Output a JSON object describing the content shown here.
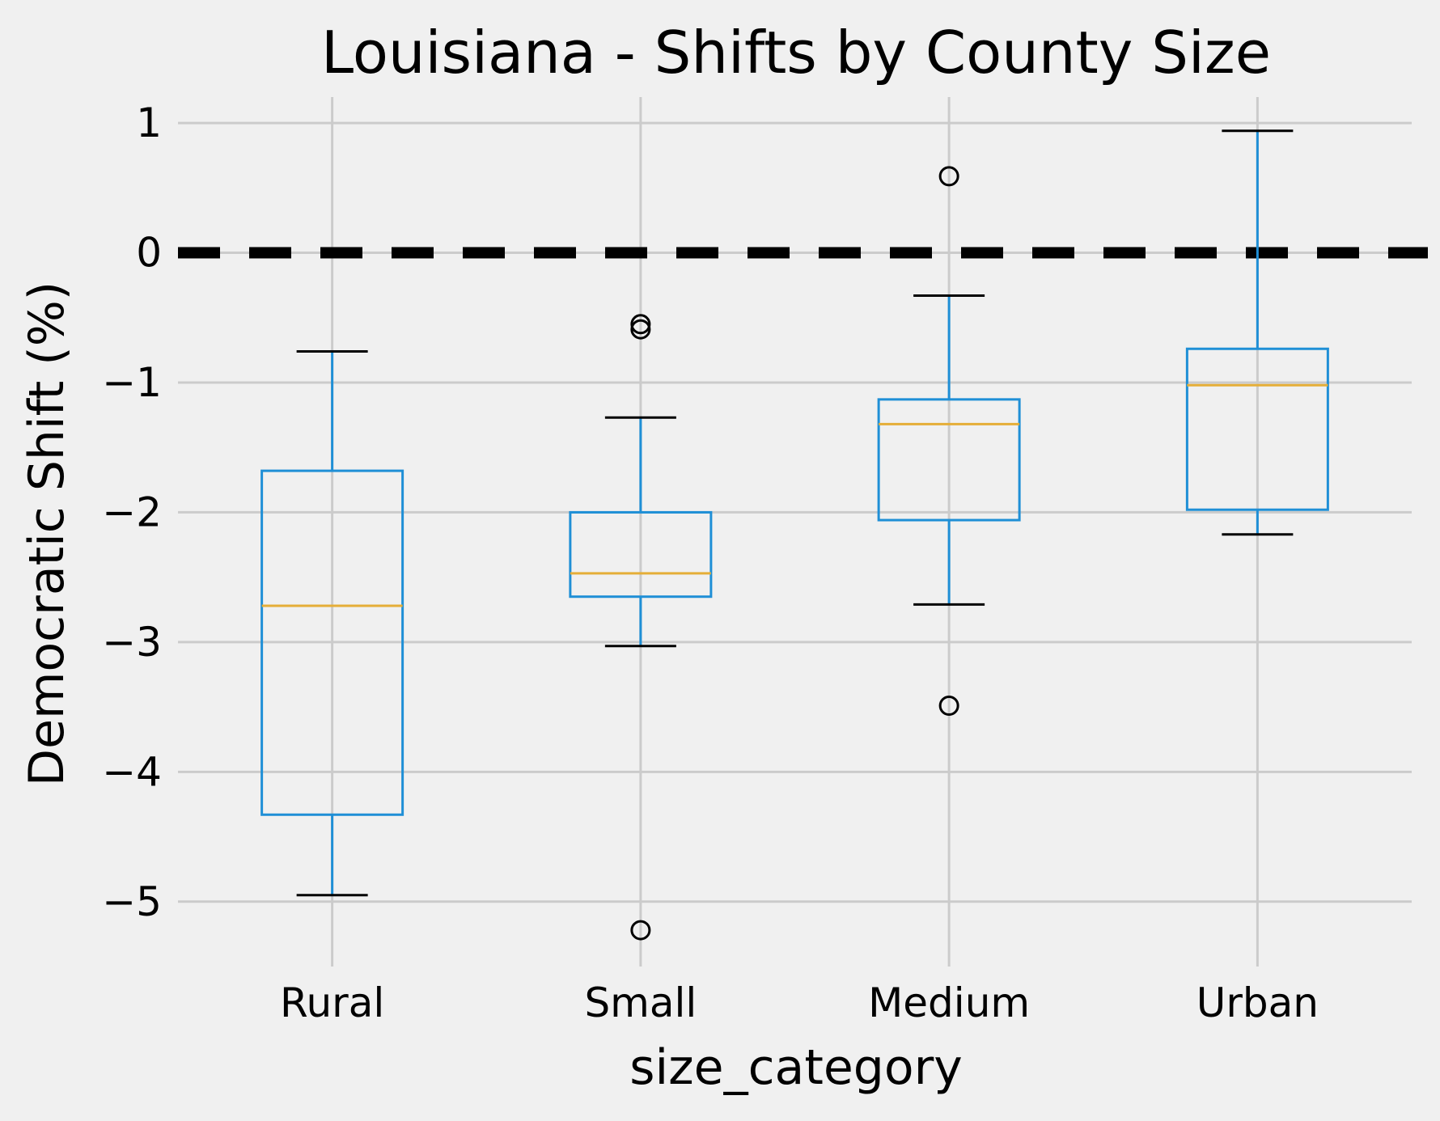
{
  "chart_data": {
    "type": "box",
    "title": "Louisiana - Shifts by County Size",
    "xlabel": "size_category",
    "ylabel": "Democratic Shift (%)",
    "ylim": [
      -5.5,
      1.2
    ],
    "yticks": [
      1,
      0,
      -1,
      -2,
      -3,
      -4,
      -5
    ],
    "ytick_labels": [
      "1",
      "0",
      "−1",
      "−2",
      "−3",
      "−4",
      "−5"
    ],
    "grid": true,
    "reference_line": {
      "y": 0,
      "style": "dashed",
      "color": "#000000"
    },
    "categories": [
      "Rural",
      "Small",
      "Medium",
      "Urban"
    ],
    "boxes": [
      {
        "category": "Rural",
        "whisker_low": -4.95,
        "q1": -4.33,
        "median": -2.72,
        "q3": -1.68,
        "whisker_high": -0.76,
        "outliers": []
      },
      {
        "category": "Small",
        "whisker_low": -3.03,
        "q1": -2.65,
        "median": -2.47,
        "q3": -2.0,
        "whisker_high": -1.27,
        "outliers": [
          -0.55,
          -0.59,
          -5.22
        ]
      },
      {
        "category": "Medium",
        "whisker_low": -2.71,
        "q1": -2.06,
        "median": -1.32,
        "q3": -1.13,
        "whisker_high": -0.33,
        "outliers": [
          0.59,
          -3.49
        ]
      },
      {
        "category": "Urban",
        "whisker_low": -2.17,
        "q1": -1.98,
        "median": -1.02,
        "q3": -0.74,
        "whisker_high": 0.94,
        "outliers": []
      }
    ],
    "colors": {
      "box": "#1f8fd6",
      "median": "#e5ae38",
      "whisker_cap": "#000000",
      "grid": "#cbcbcb",
      "background": "#f0f0f0"
    }
  }
}
